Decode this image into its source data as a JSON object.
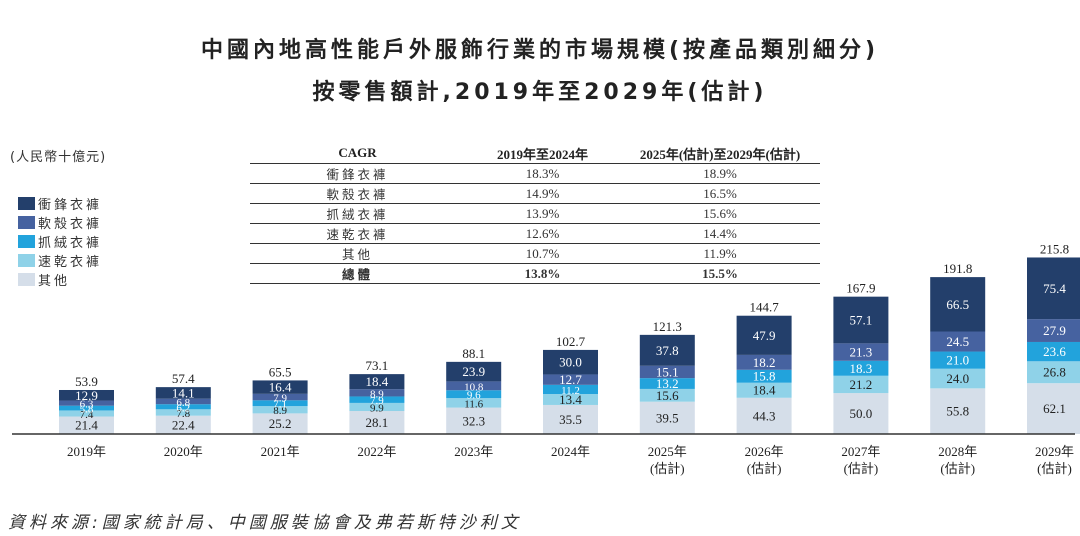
{
  "title_line1": "中國內地高性能戶外服飾行業的市場規模(按產品類別細分)",
  "title_line2": "按零售額計,2019年至2029年(估計)",
  "unit_label": "(人民幣十億元)",
  "source": "資料來源:國家統計局、中國服裝協會及弗若斯特沙利文",
  "legend": [
    {
      "label": "衝鋒衣褲",
      "color": "#233f6b"
    },
    {
      "label": "軟殼衣褲",
      "color": "#4662a0"
    },
    {
      "label": "抓絨衣褲",
      "color": "#22a3dc"
    },
    {
      "label": "速乾衣褲",
      "color": "#8fd2e8"
    },
    {
      "label": "其他",
      "color": "#d5dee9"
    }
  ],
  "cagr_table": {
    "headers": [
      "CAGR",
      "2019年至2024年",
      "2025年(估計)至2029年(估計)"
    ],
    "rows": [
      [
        "衝鋒衣褲",
        "18.3%",
        "18.9%"
      ],
      [
        "軟殼衣褲",
        "14.9%",
        "16.5%"
      ],
      [
        "抓絨衣褲",
        "13.9%",
        "15.6%"
      ],
      [
        "速乾衣褲",
        "12.6%",
        "14.4%"
      ],
      [
        "其他",
        "10.7%",
        "11.9%"
      ]
    ],
    "total": [
      "總體",
      "13.8%",
      "15.5%"
    ]
  },
  "chart_data": {
    "type": "bar",
    "stacked": true,
    "title": "中國內地高性能戶外服飾行業的市場規模(按產品類別細分) 按零售額計,2019年至2029年(估計)",
    "ylabel": "(人民幣十億元)",
    "xlabel": "",
    "ylim": [
      0,
      220
    ],
    "grid": false,
    "legend_position": "left",
    "categories": [
      [
        "2019年",
        ""
      ],
      [
        "2020年",
        ""
      ],
      [
        "2021年",
        ""
      ],
      [
        "2022年",
        ""
      ],
      [
        "2023年",
        ""
      ],
      [
        "2024年",
        ""
      ],
      [
        "2025年",
        "(估計)"
      ],
      [
        "2026年",
        "(估計)"
      ],
      [
        "2027年",
        "(估計)"
      ],
      [
        "2028年",
        "(估計)"
      ],
      [
        "2029年",
        "(估計)"
      ]
    ],
    "series": [
      {
        "name": "其他",
        "color": "#d5dee9",
        "text_color": "#222222",
        "values": [
          21.4,
          22.4,
          25.2,
          28.1,
          32.3,
          35.5,
          39.5,
          44.3,
          50.0,
          55.8,
          62.1
        ]
      },
      {
        "name": "速乾衣褲",
        "color": "#8fd2e8",
        "text_color": "#222222",
        "values": [
          7.4,
          7.8,
          8.9,
          9.9,
          11.6,
          13.4,
          15.6,
          18.4,
          21.2,
          24.0,
          26.8
        ]
      },
      {
        "name": "抓絨衣褲",
        "color": "#22a3dc",
        "text_color": "#ffffff",
        "values": [
          5.8,
          6.2,
          7.1,
          7.9,
          9.6,
          11.2,
          13.2,
          15.8,
          18.3,
          21.0,
          23.6
        ]
      },
      {
        "name": "軟殼衣褲",
        "color": "#4662a0",
        "text_color": "#ffffff",
        "values": [
          6.3,
          6.8,
          7.9,
          8.9,
          10.8,
          12.7,
          15.1,
          18.2,
          21.3,
          24.5,
          27.9
        ]
      },
      {
        "name": "衝鋒衣褲",
        "color": "#233f6b",
        "text_color": "#ffffff",
        "values": [
          12.9,
          14.1,
          16.4,
          18.4,
          23.9,
          30.0,
          37.8,
          47.9,
          57.1,
          66.5,
          75.4
        ]
      }
    ],
    "totals": [
      53.9,
      57.4,
      65.5,
      73.1,
      88.1,
      102.7,
      121.3,
      144.7,
      167.9,
      191.8,
      215.8
    ]
  }
}
